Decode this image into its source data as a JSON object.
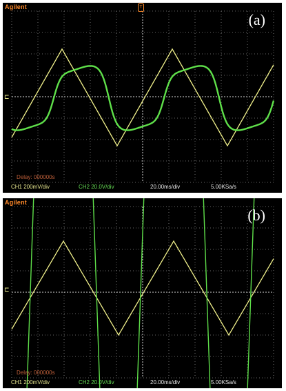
{
  "panels": [
    {
      "id": "a",
      "brand": "Agilent",
      "label": "(a)",
      "delay": "Delay: 000000s",
      "ch1": "CH1 200mV/div",
      "ch2": "CH2 20.0V/div",
      "timebase": "20.00ms/div",
      "sample_rate": "5.00KSa/s"
    },
    {
      "id": "b",
      "brand": "Agilent",
      "label": "(b)",
      "delay": "Delay: 000000s",
      "ch1": "CH1 200mV/div",
      "ch2": "CH2 20.0V/div",
      "timebase": "20.00ms/div",
      "sample_rate": "5.00KSa/s"
    }
  ],
  "colors": {
    "ch1_trace": "#f2f28c",
    "ch2_trace": "#5fe04a",
    "grid": "#8a8a8a",
    "brand": "#ff8a2a"
  }
}
